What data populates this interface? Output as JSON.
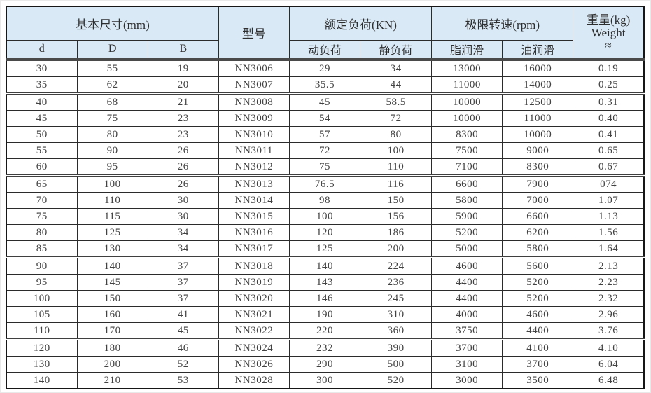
{
  "table": {
    "header": {
      "basic_dimensions": "基本尺寸(mm)",
      "model": "型号",
      "rated_load": "额定负荷(KN)",
      "limit_speed": "极限转速(rpm)",
      "weight_line1": "重量(kg)",
      "weight_line2": "Weight",
      "weight_line3": "≈"
    },
    "subheader": {
      "d": "d",
      "D": "D",
      "B": "B",
      "dynamic_load": "动负荷",
      "static_load": "静负荷",
      "grease_lubrication": "脂润滑",
      "oil_lubrication": "油润滑"
    },
    "rows": [
      [
        "30",
        "55",
        "19",
        "NN3006",
        "29",
        "34",
        "13000",
        "16000",
        "0.19"
      ],
      [
        "35",
        "62",
        "20",
        "NN3007",
        "35.5",
        "44",
        "11000",
        "14000",
        "0.25"
      ],
      [
        "40",
        "68",
        "21",
        "NN3008",
        "45",
        "58.5",
        "10000",
        "12500",
        "0.31"
      ],
      [
        "45",
        "75",
        "23",
        "NN3009",
        "54",
        "72",
        "10000",
        "11000",
        "0.40"
      ],
      [
        "50",
        "80",
        "23",
        "NN3010",
        "57",
        "80",
        "8300",
        "10000",
        "0.41"
      ],
      [
        "55",
        "90",
        "26",
        "NN3011",
        "72",
        "100",
        "7500",
        "9000",
        "0.65"
      ],
      [
        "60",
        "95",
        "26",
        "NN3012",
        "75",
        "110",
        "7100",
        "8300",
        "0.67"
      ],
      [
        "65",
        "100",
        "26",
        "NN3013",
        "76.5",
        "116",
        "6600",
        "7900",
        "074"
      ],
      [
        "70",
        "110",
        "30",
        "NN3014",
        "98",
        "150",
        "5800",
        "7000",
        "1.07"
      ],
      [
        "75",
        "115",
        "30",
        "NN3015",
        "100",
        "156",
        "5900",
        "6600",
        "1.13"
      ],
      [
        "80",
        "125",
        "34",
        "NN3016",
        "120",
        "186",
        "5200",
        "6200",
        "1.56"
      ],
      [
        "85",
        "130",
        "34",
        "NN3017",
        "125",
        "200",
        "5000",
        "5800",
        "1.64"
      ],
      [
        "90",
        "140",
        "37",
        "NN3018",
        "140",
        "224",
        "4600",
        "5600",
        "2.13"
      ],
      [
        "95",
        "145",
        "37",
        "NN3019",
        "143",
        "236",
        "4400",
        "5200",
        "2.23"
      ],
      [
        "100",
        "150",
        "37",
        "NN3020",
        "146",
        "245",
        "4400",
        "5200",
        "2.32"
      ],
      [
        "105",
        "160",
        "41",
        "NN3021",
        "190",
        "310",
        "4000",
        "4600",
        "2.96"
      ],
      [
        "110",
        "170",
        "45",
        "NN3022",
        "220",
        "360",
        "3750",
        "4400",
        "3.76"
      ],
      [
        "120",
        "180",
        "46",
        "NN3024",
        "232",
        "390",
        "3700",
        "4100",
        "4.10"
      ],
      [
        "130",
        "200",
        "52",
        "NN3026",
        "290",
        "500",
        "3100",
        "3700",
        "6.04"
      ],
      [
        "140",
        "210",
        "53",
        "NN3028",
        "300",
        "520",
        "3000",
        "3500",
        "6.48"
      ]
    ]
  },
  "colors": {
    "header_background": "#d9e9f6",
    "border": "#2b2b2b",
    "text": "#424242"
  }
}
